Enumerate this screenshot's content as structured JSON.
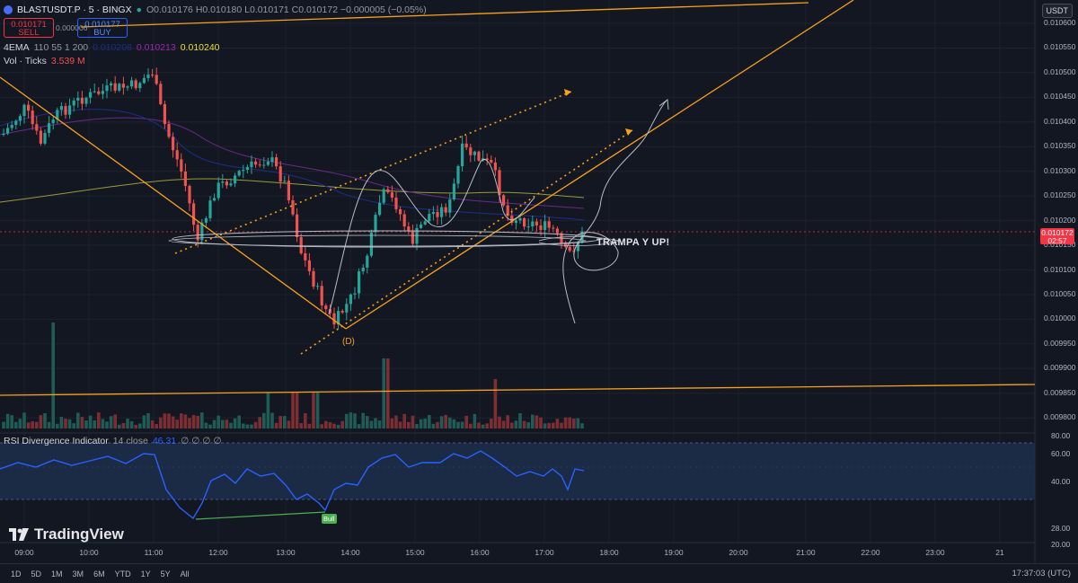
{
  "header": {
    "symbol_line": "BLASTUSDT.P · 5 · BINGX",
    "ohlc": "O0.010176 H0.010180 L0.010171 C0.010172 −0.000005 (−0.05%)",
    "sell_price": "0.010171",
    "sell_label": "SELL",
    "buy_price": "0.010177",
    "buy_label": "BUY",
    "spread": "0.000006",
    "currency_button": "USDT"
  },
  "indicators": {
    "ema_name": "4EMA",
    "ema_params": "110 55 1 200",
    "ema_val1": "0.010208",
    "ema_val2": "0.010213",
    "ema_val3": "0.010240",
    "vol_name": "Vol · Ticks",
    "vol_value": "3.539 M",
    "rsi_name": "RSI Divergence Indicator",
    "rsi_params": "14 close",
    "rsi_value": "46.31",
    "rsi_extra": "∅ ∅ ∅ ∅"
  },
  "price_axis": [
    "0.010600",
    "0.010550",
    "0.010500",
    "0.010450",
    "0.010400",
    "0.010350",
    "0.010300",
    "0.010250",
    "0.010200",
    "0.010150",
    "0.010100",
    "0.010050",
    "0.010000",
    "0.009950",
    "0.009900",
    "0.009850",
    "0.009800"
  ],
  "current_price": "0.010172",
  "countdown": "02:57",
  "rsi_axis": [
    "80.00",
    "60.00",
    "40.00",
    "28.00",
    "20.00"
  ],
  "time_axis": [
    "09:00",
    "10:00",
    "11:00",
    "12:00",
    "13:00",
    "14:00",
    "15:00",
    "16:00",
    "17:00",
    "18:00",
    "19:00",
    "20:00",
    "21:00",
    "22:00",
    "23:00",
    "21"
  ],
  "annotations": {
    "note": "TRAMPA Y UP!",
    "wave": "(D)",
    "divergence": "Bull"
  },
  "branding": "TradingView",
  "timeframes": [
    "1D",
    "5D",
    "1M",
    "3M",
    "6M",
    "YTD",
    "1Y",
    "5Y",
    "All"
  ],
  "clock": "17:37:03 (UTC)",
  "colors": {
    "bg": "#131722",
    "up": "#26a69a",
    "down": "#ef5350",
    "trend": "#f7a21b",
    "rsi": "#2962ff",
    "price_tag": "#f23645"
  }
}
